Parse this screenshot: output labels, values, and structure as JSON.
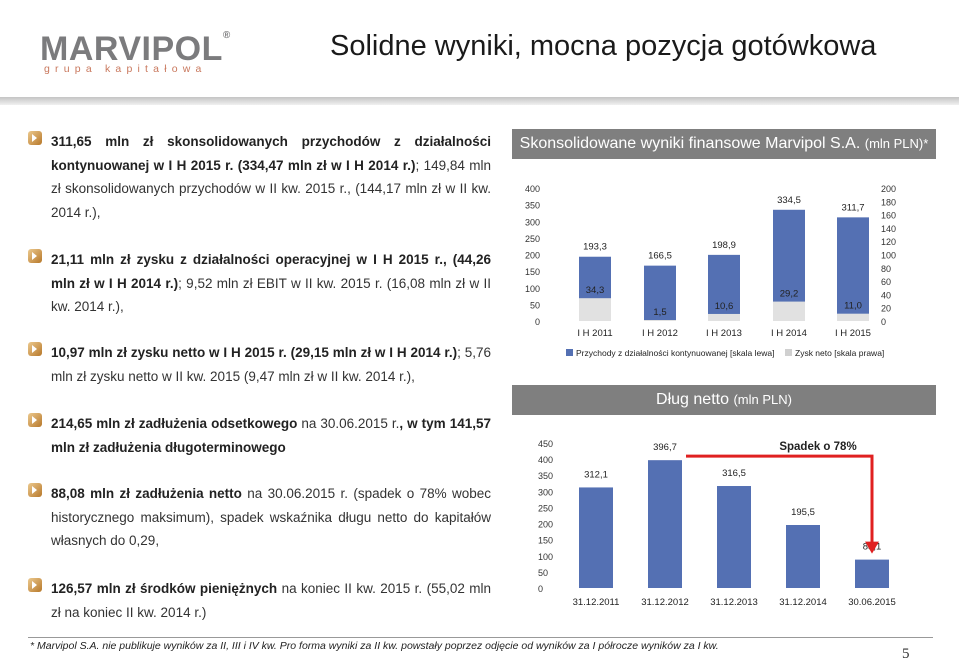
{
  "logo": {
    "word": "MARVIPOL",
    "reg": "®",
    "sub": "grupa kapitałowa"
  },
  "slide": {
    "title": "Solidne wyniki, mocna pozycja gotówkowa",
    "page": "5"
  },
  "bullets": [
    {
      "parts": [
        {
          "t": "311,65 mln zł skonsolidowanych przychodów z działalności kontynuowanej w I H 2015 r. (334,47 mln zł w I H 2014 r.)",
          "b": true
        },
        {
          "t": "; 149,84 mln zł skonsolidowanych przychodów w II kw. 2015 r., (144,17 mln zł w II kw. 2014 r.),",
          "b": false
        }
      ]
    },
    {
      "parts": [
        {
          "t": "21,11 mln zł zysku z działalności operacyjnej w I H 2015 r., (44,26 mln zł w I H 2014 r.)",
          "b": true
        },
        {
          "t": "; 9,52 mln zł EBIT w II kw. 2015 r. (16,08 mln zł w II kw. 2014 r.),",
          "b": false
        }
      ]
    },
    {
      "parts": [
        {
          "t": "10,97 mln zł zysku netto w I H 2015 r. (29,15 mln zł w I H 2014 r.)",
          "b": true
        },
        {
          "t": "; 5,76 mln zł zysku netto w II kw. 2015 (9,47 mln zł w II kw. 2014 r.),",
          "b": false
        }
      ]
    },
    {
      "parts": [
        {
          "t": "214,65 mln zł zadłużenia odsetkowego",
          "b": true
        },
        {
          "t": " na 30.06.2015 r.",
          "b": false
        },
        {
          "t": ", w tym 141,57 mln zł zadłużenia długoterminowego",
          "b": true
        }
      ]
    },
    {
      "parts": [
        {
          "t": "88,08 mln zł zadłużenia netto",
          "b": true
        },
        {
          "t": " na 30.06.2015 r. (spadek o 78% wobec historycznego maksimum), spadek wskaźnika długu netto do kapitałów własnych do 0,29,",
          "b": false
        }
      ]
    },
    {
      "parts": [
        {
          "t": "126,57 mln zł środków pieniężnych",
          "b": true
        },
        {
          "t": " na koniec II kw. 2015 r. (55,02 mln zł na koniec II kw. 2014 r.)",
          "b": false
        }
      ]
    }
  ],
  "panel1": {
    "title": "Skonsolidowane wyniki finansowe Marvipol S.A.",
    "title_small": "(mln PLN)*"
  },
  "panel2": {
    "title": "Dług netto",
    "title_small": "(mln PLN)"
  },
  "chart_data": [
    {
      "type": "bar",
      "categories": [
        "I H 2011",
        "I H 2012",
        "I H 2013",
        "I H 2014",
        "I H 2015"
      ],
      "series": [
        {
          "name": "Przychody z działalności kontynuowanej [skala lewa]",
          "values": [
            193.3,
            166.5,
            198.9,
            334.5,
            311.7
          ],
          "labels": [
            "193,3",
            "166,5",
            "198,9",
            "334,5",
            "311,7"
          ],
          "color": "#5470b3",
          "axis": "left"
        },
        {
          "name": "Zysk neto [skala prawa]",
          "values": [
            34.3,
            1.5,
            10.6,
            29.2,
            11.0
          ],
          "labels": [
            "34,3",
            "1,5",
            "10,6",
            "29,2",
            "11,0"
          ],
          "color": "#e1e1e1",
          "axis": "right"
        }
      ],
      "ylim_left": [
        0,
        400
      ],
      "yticks_left": [
        "0",
        "50",
        "100",
        "150",
        "200",
        "250",
        "300",
        "350",
        "400"
      ],
      "ylim_right": [
        0,
        200
      ],
      "yticks_right": [
        "0",
        "20",
        "40",
        "60",
        "80",
        "100",
        "120",
        "140",
        "160",
        "180",
        "200"
      ]
    },
    {
      "type": "bar",
      "categories": [
        "31.12.2011",
        "31.12.2012",
        "31.12.2013",
        "31.12.2014",
        "30.06.2015"
      ],
      "series": [
        {
          "values": [
            312.1,
            396.7,
            316.5,
            195.5,
            88.1
          ],
          "labels": [
            "312,1",
            "396,7",
            "316,5",
            "195,5",
            "88,1"
          ],
          "color": "#5470b3"
        }
      ],
      "ylim": [
        0,
        450
      ],
      "yticks": [
        "0",
        "50",
        "100",
        "150",
        "200",
        "250",
        "300",
        "350",
        "400",
        "450"
      ],
      "annotation": "Spadek o 78%",
      "annotation_color": "#e02020"
    }
  ],
  "footnote": "* Marvipol S.A. nie publikuje wyników za II, III i IV kw. Pro forma wyniki za II kw. powstały poprzez odjęcie od wyników za I półrocze wyników za I kw."
}
